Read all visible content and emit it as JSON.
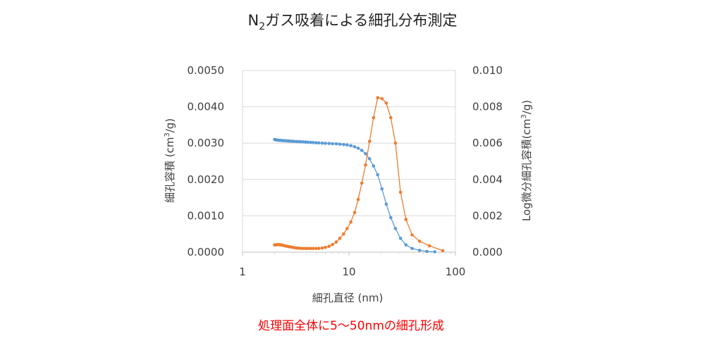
{
  "chart_data": {
    "type": "scatter",
    "title": "N2ガス吸着による細孔分布測定",
    "title_parts": {
      "base": "N",
      "subscript": "2",
      "rest": "ガス吸着による細孔分布測定"
    },
    "xlabel": "細孔直径 (nm)",
    "ylabel_left": {
      "text": "細孔容積 (cm",
      "sup": "3",
      "end": "/g)"
    },
    "ylabel_right": {
      "text": "Log微分細孔容積(cm",
      "sup": "3",
      "end": "/g)"
    },
    "x_scale": "log",
    "xlim": [
      1,
      100
    ],
    "x_ticks": [
      1,
      10,
      100
    ],
    "x_tick_labels": [
      "1",
      "10",
      "100"
    ],
    "ylim_left": [
      0,
      0.005
    ],
    "y_ticks_left": [
      0,
      0.001,
      0.002,
      0.003,
      0.004,
      0.005
    ],
    "y_tick_labels_left": [
      "0.0000",
      "0.0010",
      "0.0020",
      "0.0030",
      "0.0040",
      "0.0050"
    ],
    "ylim_right": [
      0,
      0.01
    ],
    "y_ticks_right": [
      0,
      0.002,
      0.004,
      0.006,
      0.008,
      0.01
    ],
    "y_tick_labels_right": [
      "0.000",
      "0.002",
      "0.004",
      "0.006",
      "0.008",
      "0.010"
    ],
    "grid": "horizontal",
    "legend": "none",
    "series": [
      {
        "axis": "left",
        "color": "#5b9bd5",
        "x": [
          2.0,
          2.05,
          2.1,
          2.16,
          2.22,
          2.28,
          2.35,
          2.42,
          2.5,
          2.6,
          2.7,
          2.8,
          2.92,
          3.05,
          3.2,
          3.35,
          3.5,
          3.7,
          3.9,
          4.1,
          4.35,
          4.6,
          4.9,
          5.2,
          5.6,
          6.0,
          6.5,
          7.0,
          7.6,
          8.2,
          8.9,
          9.6,
          10.4,
          11.3,
          12.2,
          13.2,
          14.3,
          15.6,
          17.0,
          18.6,
          20.4,
          22.4,
          24.7,
          27.3,
          30.5,
          34.3,
          39.2,
          46.0,
          54.0,
          64.0
        ],
        "y": [
          0.0031,
          0.00309,
          0.003085,
          0.00308,
          0.003078,
          0.003075,
          0.00307,
          0.003068,
          0.003065,
          0.00306,
          0.003058,
          0.003055,
          0.00305,
          0.003048,
          0.003045,
          0.00304,
          0.003038,
          0.003035,
          0.00303,
          0.003025,
          0.00302,
          0.003015,
          0.00301,
          0.003005,
          0.003,
          0.002995,
          0.00299,
          0.002985,
          0.00298,
          0.00297,
          0.00296,
          0.00295,
          0.00293,
          0.0029,
          0.00286,
          0.0028,
          0.00271,
          0.00257,
          0.00237,
          0.00213,
          0.00174,
          0.00132,
          0.00095,
          0.00065,
          0.00038,
          0.0002,
          0.0001,
          5e-05,
          2e-05,
          1e-05
        ]
      },
      {
        "axis": "right",
        "color": "#ed7d31",
        "x": [
          2.0,
          2.05,
          2.1,
          2.16,
          2.22,
          2.28,
          2.35,
          2.42,
          2.5,
          2.6,
          2.7,
          2.8,
          2.92,
          3.05,
          3.2,
          3.35,
          3.5,
          3.7,
          3.9,
          4.1,
          4.35,
          4.6,
          4.9,
          5.2,
          5.6,
          6.0,
          6.5,
          7.0,
          7.6,
          8.2,
          8.9,
          9.6,
          10.4,
          11.3,
          12.2,
          13.2,
          14.3,
          15.6,
          17.0,
          18.6,
          20.4,
          22.4,
          24.7,
          27.3,
          30.5,
          34.3,
          39.2,
          46.0,
          57.0,
          76.0
        ],
        "y": [
          0.0004,
          0.0004,
          0.00041,
          0.00042,
          0.00041,
          0.0004,
          0.00039,
          0.00037,
          0.00035,
          0.00033,
          0.00031,
          0.00029,
          0.00027,
          0.00025,
          0.00023,
          0.00022,
          0.00021,
          0.0002,
          0.0002,
          0.0002,
          0.0002,
          0.0002,
          0.0002,
          0.00021,
          0.00023,
          0.00026,
          0.00032,
          0.00042,
          0.00056,
          0.00076,
          0.001,
          0.0013,
          0.00166,
          0.00218,
          0.0029,
          0.0038,
          0.0048,
          0.0061,
          0.0074,
          0.0085,
          0.00845,
          0.0082,
          0.0074,
          0.006,
          0.0033,
          0.0018,
          0.00095,
          0.0006,
          0.00035,
          8e-05
        ]
      }
    ]
  },
  "caption": "処理面全体に5～50nmの細孔形成"
}
